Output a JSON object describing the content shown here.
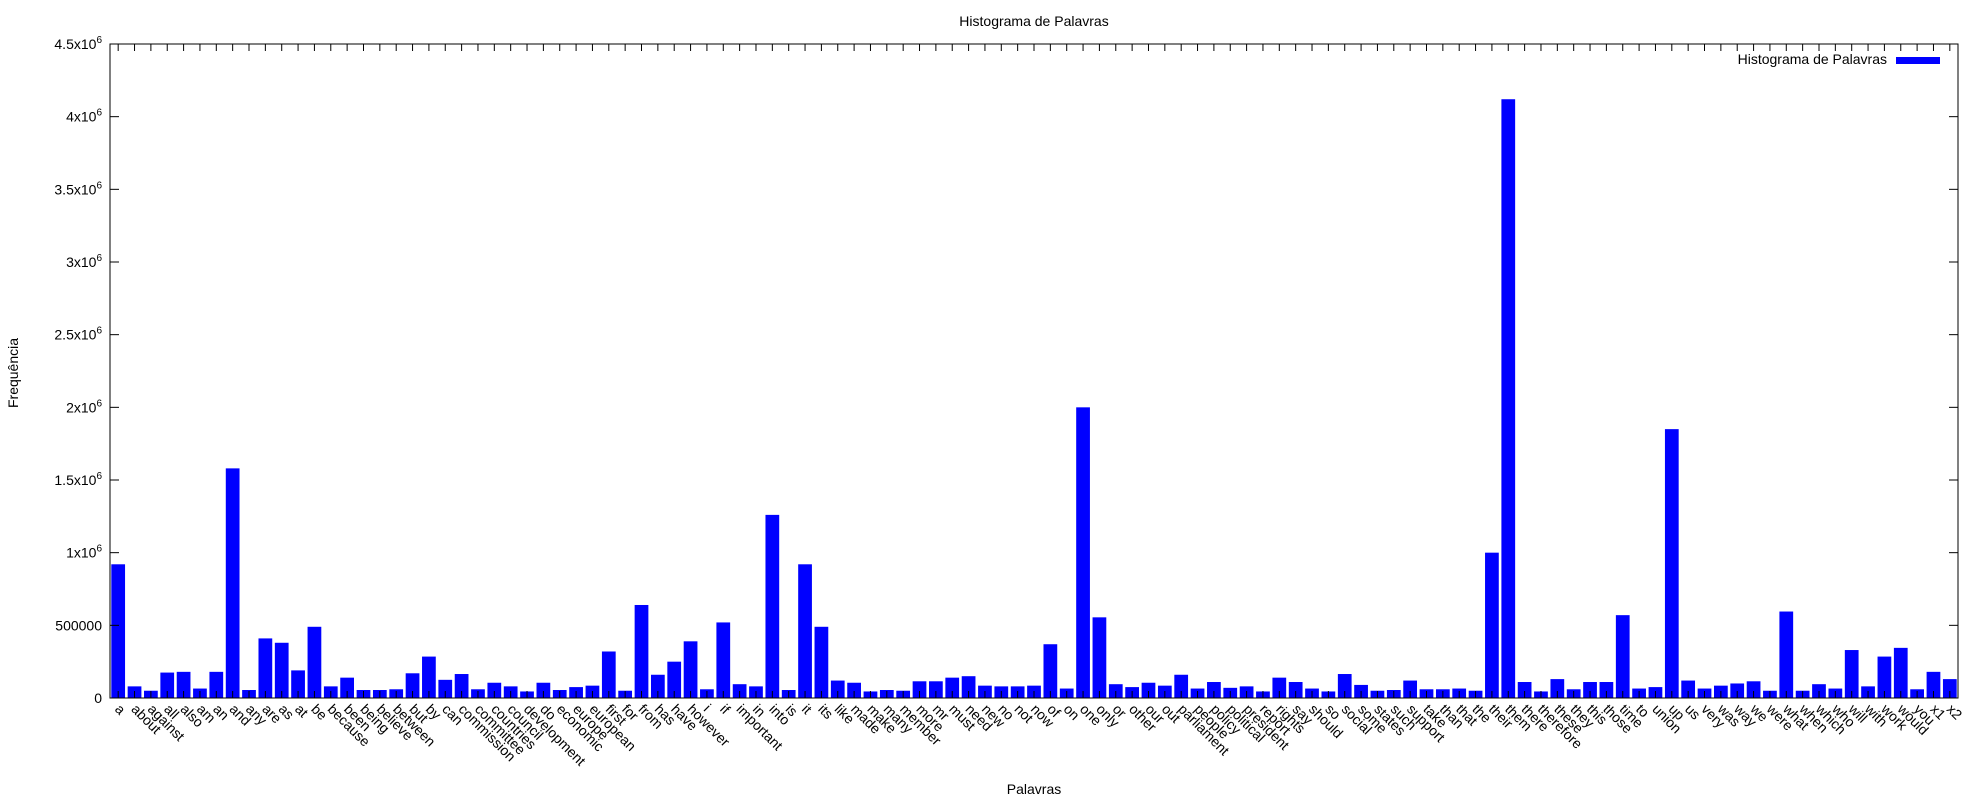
{
  "chart_data": {
    "type": "bar",
    "title": "Histograma de Palavras",
    "xlabel": "Palavras",
    "ylabel": "Frequência",
    "ylim": [
      0,
      4500000
    ],
    "ytick_values": [
      0,
      500000,
      1000000,
      1500000,
      2000000,
      2500000,
      3000000,
      3500000,
      4000000,
      4500000
    ],
    "ytick_labels": [
      {
        "text": "0",
        "exp": ""
      },
      {
        "text": "500000",
        "exp": ""
      },
      {
        "text": "1x10",
        "exp": "6"
      },
      {
        "text": "1.5x10",
        "exp": "6"
      },
      {
        "text": "2x10",
        "exp": "6"
      },
      {
        "text": "2.5x10",
        "exp": "6"
      },
      {
        "text": "3x10",
        "exp": "6"
      },
      {
        "text": "3.5x10",
        "exp": "6"
      },
      {
        "text": "4x10",
        "exp": "6"
      },
      {
        "text": "4.5x10",
        "exp": "6"
      }
    ],
    "grid": false,
    "legend_position": "top-right",
    "series": [
      {
        "name": "Histograma de Palavras",
        "color": "#0000ff",
        "values": [
          920000,
          80000,
          50000,
          175000,
          180000,
          65000,
          180000,
          1580000,
          55000,
          410000,
          380000,
          190000,
          490000,
          80000,
          140000,
          55000,
          55000,
          60000,
          170000,
          285000,
          125000,
          165000,
          60000,
          105000,
          80000,
          45000,
          105000,
          55000,
          75000,
          85000,
          320000,
          50000,
          640000,
          160000,
          250000,
          390000,
          60000,
          520000,
          95000,
          80000,
          1260000,
          55000,
          920000,
          490000,
          120000,
          105000,
          45000,
          55000,
          50000,
          115000,
          115000,
          140000,
          150000,
          85000,
          80000,
          80000,
          85000,
          370000,
          65000,
          2000000,
          555000,
          95000,
          75000,
          105000,
          85000,
          160000,
          65000,
          110000,
          70000,
          80000,
          45000,
          140000,
          110000,
          65000,
          45000,
          165000,
          90000,
          50000,
          55000,
          120000,
          60000,
          60000,
          65000,
          50000,
          1000000,
          4120000,
          110000,
          45000,
          130000,
          60000,
          110000,
          110000,
          570000,
          65000,
          75000,
          1850000,
          120000,
          65000,
          85000,
          100000,
          115000,
          50000,
          595000,
          50000,
          95000,
          65000,
          330000,
          80000,
          285000,
          345000,
          60000,
          180000,
          130000
        ]
      }
    ],
    "categories": [
      "a",
      "about",
      "against",
      "all",
      "also",
      "am",
      "an",
      "and",
      "any",
      "are",
      "as",
      "at",
      "be",
      "because",
      "been",
      "being",
      "believe",
      "between",
      "but",
      "by",
      "can",
      "commission",
      "committee",
      "countries",
      "council",
      "development",
      "do",
      "economic",
      "europe",
      "european",
      "first",
      "for",
      "from",
      "has",
      "have",
      "however",
      "i",
      "if",
      "important",
      "in",
      "into",
      "is",
      "it",
      "its",
      "like",
      "made",
      "make",
      "many",
      "member",
      "more",
      "mr",
      "must",
      "need",
      "new",
      "no",
      "not",
      "now",
      "of",
      "on",
      "one",
      "only",
      "or",
      "other",
      "our",
      "out",
      "parliament",
      "people",
      "policy",
      "political",
      "president",
      "report",
      "rights",
      "say",
      "should",
      "so",
      "social",
      "some",
      "states",
      "such",
      "support",
      "take",
      "than",
      "that",
      "the",
      "their",
      "them",
      "there",
      "therefore",
      "these",
      "they",
      "this",
      "those",
      "time",
      "to",
      "union",
      "up",
      "us",
      "very",
      "was",
      "way",
      "we",
      "were",
      "what",
      "when",
      "which",
      "who",
      "will",
      "with",
      "work",
      "would",
      "you",
      "x1",
      "x2"
    ]
  }
}
